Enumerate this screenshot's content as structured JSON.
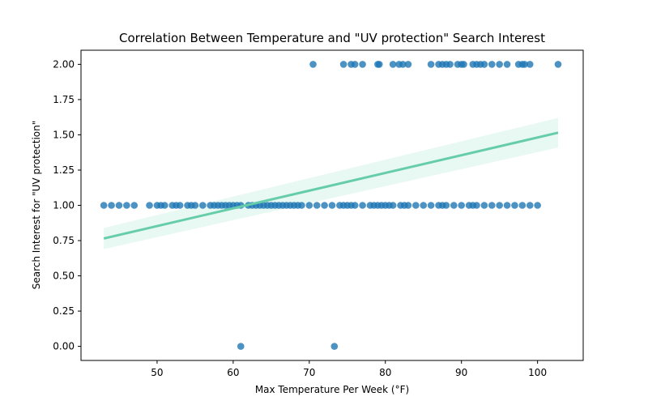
{
  "chart_data": {
    "type": "scatter",
    "title": "Correlation Between Temperature and \"UV protection\" Search Interest",
    "xlabel": "Max Temperature Per Week (°F)",
    "ylabel": "Search Interest for \"UV protection\"",
    "xlim": [
      40,
      106
    ],
    "ylim": [
      -0.1,
      2.1
    ],
    "xticks": [
      50,
      60,
      70,
      80,
      90,
      100
    ],
    "yticks": [
      0.0,
      0.25,
      0.5,
      0.75,
      1.0,
      1.25,
      1.5,
      1.75,
      2.0
    ],
    "xtick_labels": [
      "50",
      "60",
      "70",
      "80",
      "90",
      "100"
    ],
    "ytick_labels": [
      "0.00",
      "0.25",
      "0.50",
      "0.75",
      "1.00",
      "1.25",
      "1.50",
      "1.75",
      "2.00"
    ],
    "grid": false,
    "colors": {
      "points": "#1f77b4",
      "regression": "#66cdaa",
      "confidence_band": "#66cdaa"
    },
    "series": [
      {
        "points": [
          [
            43,
            1
          ],
          [
            44,
            1
          ],
          [
            45,
            1
          ],
          [
            46,
            1
          ],
          [
            47,
            1
          ],
          [
            49,
            1
          ],
          [
            50,
            1
          ],
          [
            50.5,
            1
          ],
          [
            51,
            1
          ],
          [
            52,
            1
          ],
          [
            52.5,
            1
          ],
          [
            53,
            1
          ],
          [
            54,
            1
          ],
          [
            54.5,
            1
          ],
          [
            55,
            1
          ],
          [
            56,
            1
          ],
          [
            57,
            1
          ],
          [
            57.5,
            1
          ],
          [
            58,
            1
          ],
          [
            58.5,
            1
          ],
          [
            59,
            1
          ],
          [
            59.5,
            1
          ],
          [
            60,
            1
          ],
          [
            60.5,
            1
          ],
          [
            61,
            1
          ],
          [
            62,
            1
          ],
          [
            62.5,
            1
          ],
          [
            63,
            1
          ],
          [
            63.5,
            1
          ],
          [
            64,
            1
          ],
          [
            64.5,
            1
          ],
          [
            65,
            1
          ],
          [
            65.5,
            1
          ],
          [
            66,
            1
          ],
          [
            66.5,
            1
          ],
          [
            67,
            1
          ],
          [
            67.5,
            1
          ],
          [
            68,
            1
          ],
          [
            68.5,
            1
          ],
          [
            69,
            1
          ],
          [
            70,
            1
          ],
          [
            71,
            1
          ],
          [
            72,
            1
          ],
          [
            73,
            1
          ],
          [
            74,
            1
          ],
          [
            74.5,
            1
          ],
          [
            75,
            1
          ],
          [
            75.5,
            1
          ],
          [
            76,
            1
          ],
          [
            77,
            1
          ],
          [
            78,
            1
          ],
          [
            78.5,
            1
          ],
          [
            79,
            1
          ],
          [
            79.5,
            1
          ],
          [
            80,
            1
          ],
          [
            80.5,
            1
          ],
          [
            81,
            1
          ],
          [
            82,
            1
          ],
          [
            82.5,
            1
          ],
          [
            83,
            1
          ],
          [
            84,
            1
          ],
          [
            85,
            1
          ],
          [
            86,
            1
          ],
          [
            87,
            1
          ],
          [
            87.5,
            1
          ],
          [
            88,
            1
          ],
          [
            89,
            1
          ],
          [
            90,
            1
          ],
          [
            91,
            1
          ],
          [
            91.5,
            1
          ],
          [
            92,
            1
          ],
          [
            93,
            1
          ],
          [
            94,
            1
          ],
          [
            95,
            1
          ],
          [
            96,
            1
          ],
          [
            97,
            1
          ],
          [
            98,
            1
          ],
          [
            99,
            1
          ],
          [
            100,
            1
          ],
          [
            70.5,
            2
          ],
          [
            74.5,
            2
          ],
          [
            75.5,
            2
          ],
          [
            76,
            2
          ],
          [
            77,
            2
          ],
          [
            79,
            2
          ],
          [
            79.2,
            2
          ],
          [
            81,
            2
          ],
          [
            81.8,
            2
          ],
          [
            82.3,
            2
          ],
          [
            83,
            2
          ],
          [
            86,
            2
          ],
          [
            87,
            2
          ],
          [
            87.5,
            2
          ],
          [
            88,
            2
          ],
          [
            88.5,
            2
          ],
          [
            89.5,
            2
          ],
          [
            90,
            2
          ],
          [
            90.3,
            2
          ],
          [
            91.5,
            2
          ],
          [
            92,
            2
          ],
          [
            92.5,
            2
          ],
          [
            93,
            2
          ],
          [
            94,
            2
          ],
          [
            95,
            2
          ],
          [
            96,
            2
          ],
          [
            97.5,
            2
          ],
          [
            98,
            2
          ],
          [
            98.3,
            2
          ],
          [
            99,
            2
          ],
          [
            102.7,
            2
          ],
          [
            61,
            0
          ],
          [
            73.3,
            0
          ]
        ]
      }
    ],
    "regression": {
      "x": [
        43,
        102.7
      ],
      "y": [
        0.765,
        1.515
      ],
      "ci_lower": [
        0.69,
        1.41
      ],
      "ci_upper": [
        0.84,
        1.62
      ]
    }
  }
}
